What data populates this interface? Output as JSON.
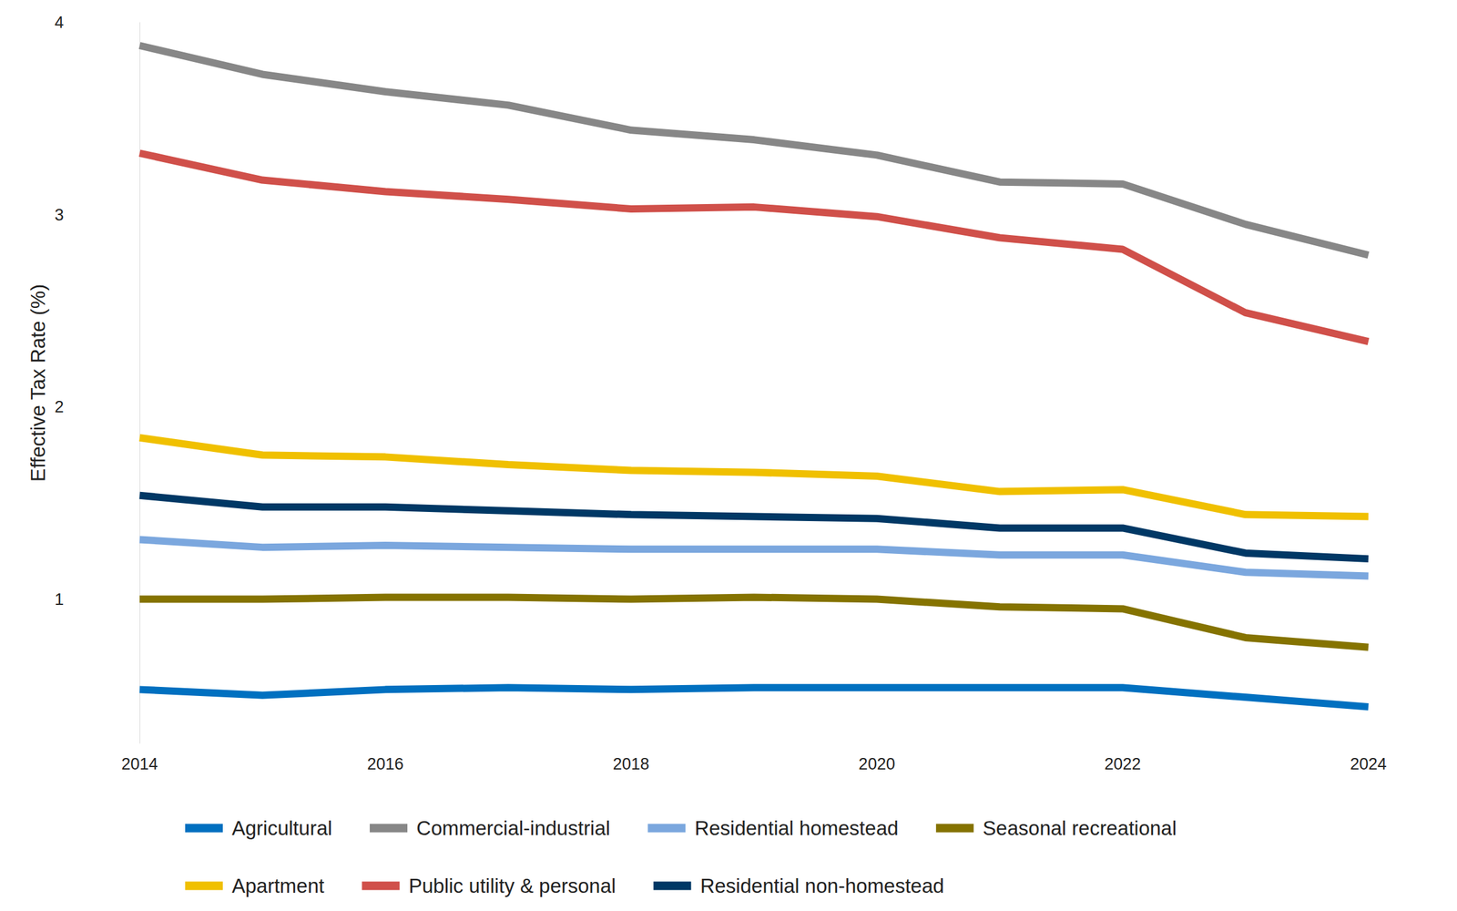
{
  "chart_data": {
    "type": "line",
    "y_label": "Effective Tax Rate (%)",
    "x": [
      2014,
      2015,
      2016,
      2017,
      2018,
      2019,
      2020,
      2021,
      2022,
      2023,
      2024
    ],
    "xlim": [
      2014,
      2024
    ],
    "xticks": [
      2014,
      2016,
      2018,
      2020,
      2022,
      2024
    ],
    "ylim": [
      0.25,
      4
    ],
    "yticks": [
      1,
      2,
      3,
      4
    ],
    "grid": false,
    "legend": "bottom",
    "series": [
      {
        "name": "Agricultural",
        "color": "#0070c0",
        "values": [
          0.53,
          0.5,
          0.53,
          0.54,
          0.53,
          0.54,
          0.54,
          0.54,
          0.54,
          0.49,
          0.44
        ]
      },
      {
        "name": "Commercial-industrial",
        "color": "#878787",
        "values": [
          3.88,
          3.73,
          3.64,
          3.57,
          3.44,
          3.39,
          3.31,
          3.17,
          3.16,
          2.95,
          2.79
        ]
      },
      {
        "name": "Residential homestead",
        "color": "#7ba7de",
        "values": [
          1.31,
          1.27,
          1.28,
          1.27,
          1.26,
          1.26,
          1.26,
          1.23,
          1.23,
          1.14,
          1.12
        ]
      },
      {
        "name": "Seasonal recreational",
        "color": "#857300",
        "values": [
          1.0,
          1.0,
          1.01,
          1.01,
          1.0,
          1.01,
          1.0,
          0.96,
          0.95,
          0.8,
          0.75
        ]
      },
      {
        "name": "Apartment",
        "color": "#f0c000",
        "values": [
          1.84,
          1.75,
          1.74,
          1.7,
          1.67,
          1.66,
          1.64,
          1.56,
          1.57,
          1.44,
          1.43
        ]
      },
      {
        "name": "Public utility & personal",
        "color": "#d0504a",
        "values": [
          3.32,
          3.18,
          3.12,
          3.08,
          3.03,
          3.04,
          2.99,
          2.88,
          2.82,
          2.49,
          2.34
        ]
      },
      {
        "name": "Residential non-homestead",
        "color": "#003865",
        "values": [
          1.54,
          1.48,
          1.48,
          1.46,
          1.44,
          1.43,
          1.42,
          1.37,
          1.37,
          1.24,
          1.21
        ]
      }
    ]
  }
}
